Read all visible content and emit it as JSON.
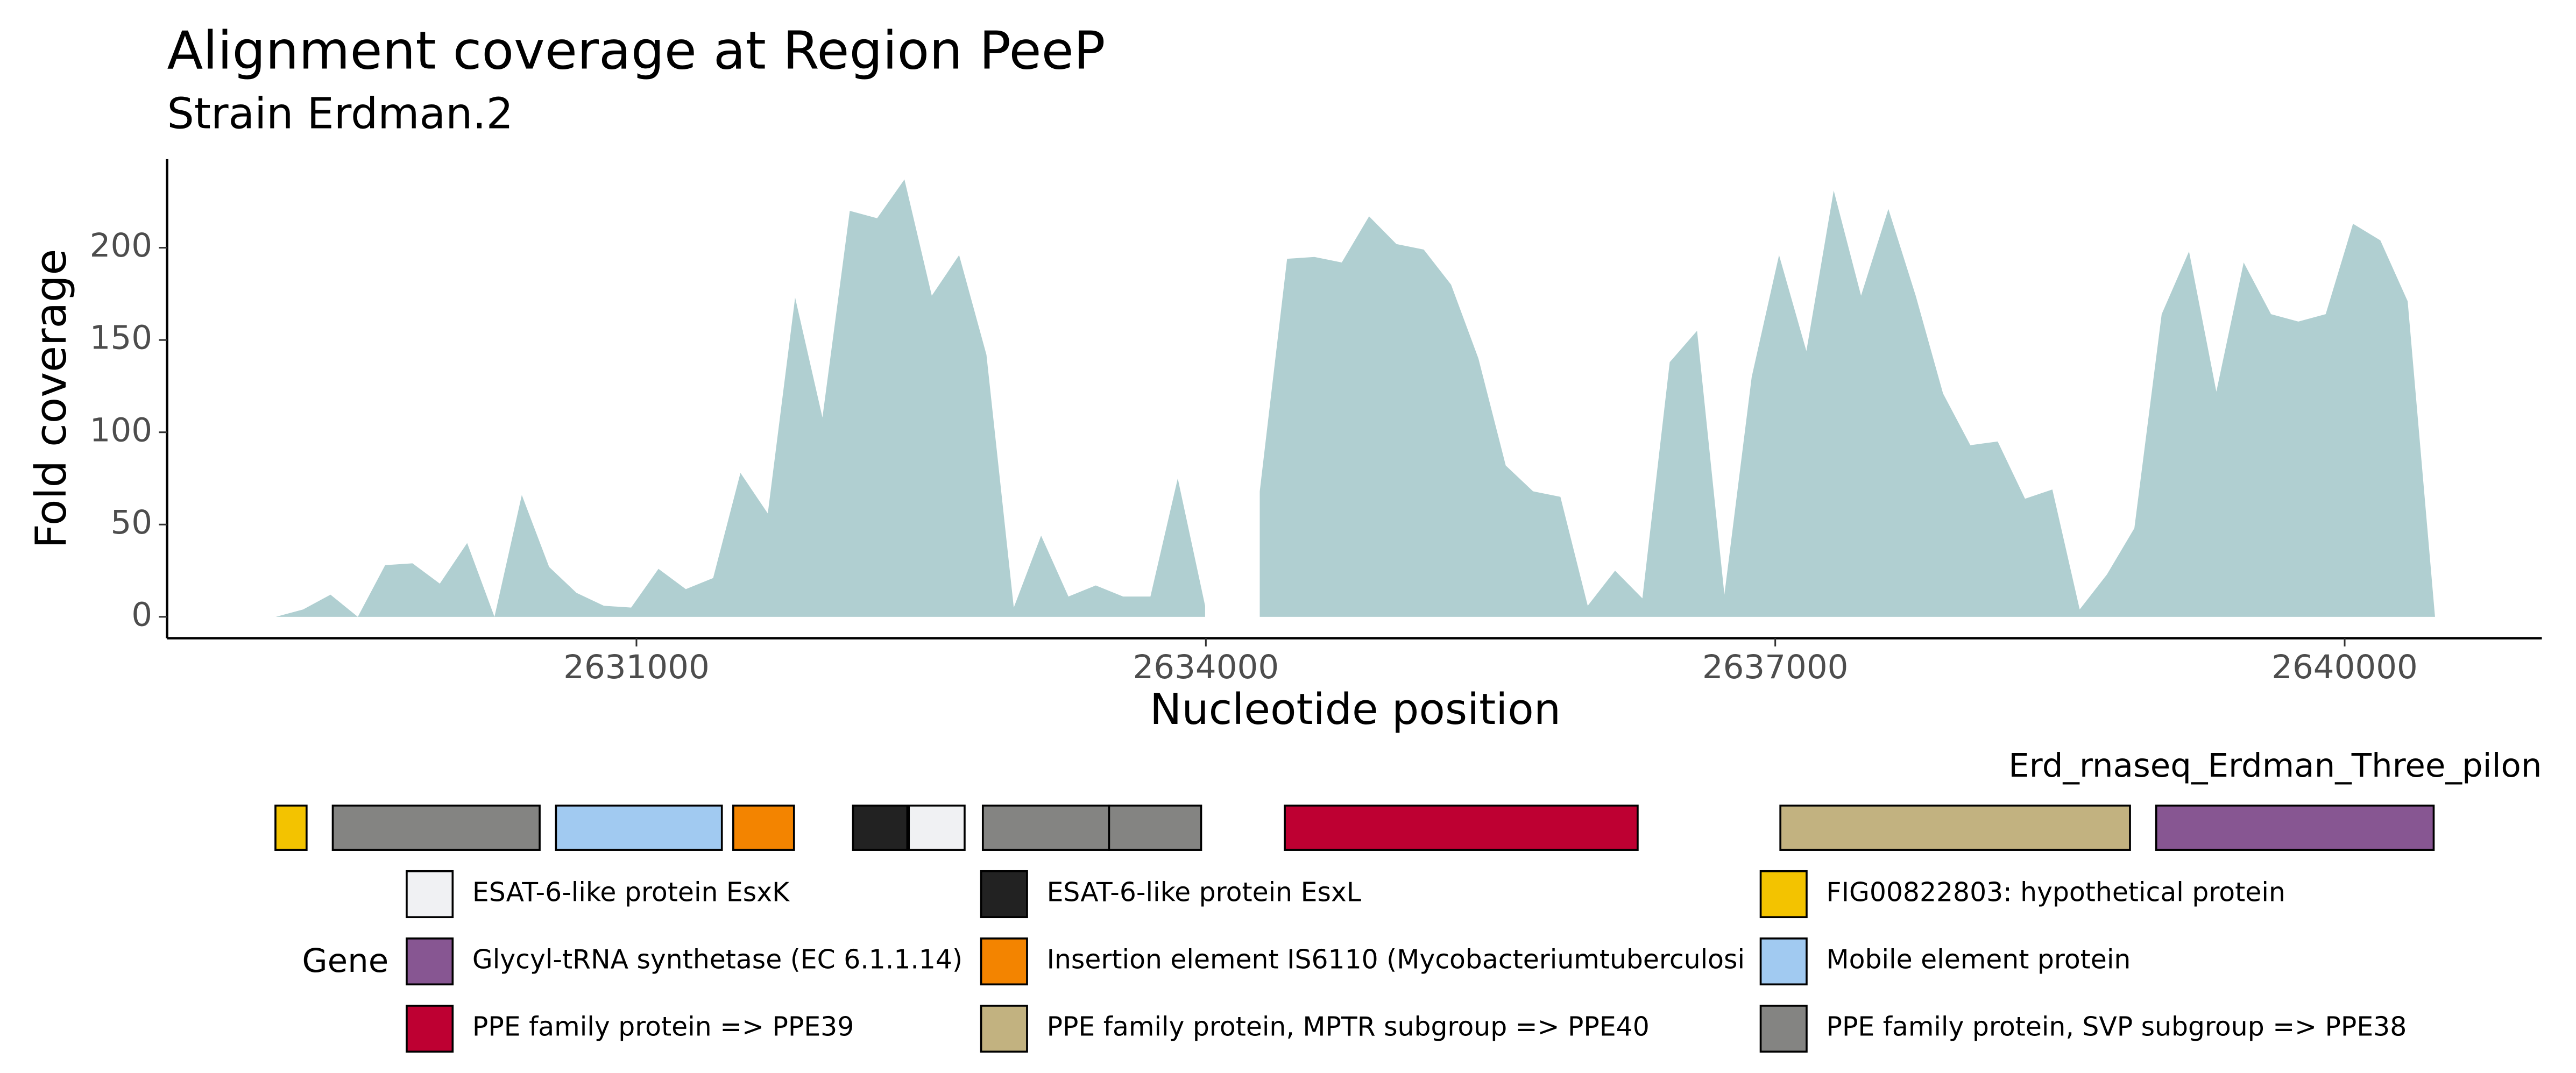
{
  "chart_data": {
    "type": "area",
    "title": "Alignment coverage at Region PeeP",
    "subtitle": "Strain Erdman.2",
    "xlabel": "Nucleotide position",
    "ylabel": "Fold coverage",
    "color": "#b0cfd1",
    "x": [
      2629100,
      2629244,
      2629388,
      2629532,
      2629676,
      2629820,
      2629964,
      2630108,
      2630252,
      2630396,
      2630540,
      2630684,
      2630828,
      2630972,
      2631116,
      2631260,
      2631404,
      2631548,
      2631692,
      2631836,
      2631980,
      2632124,
      2632268,
      2632412,
      2632556,
      2632700,
      2632844,
      2632988,
      2633132,
      2633276,
      2633420,
      2633564,
      2633708,
      2633852,
      2633996,
      2634140,
      2634284,
      2634428,
      2634572,
      2634716,
      2634860,
      2635004,
      2635148,
      2635292,
      2635436,
      2635580,
      2635724,
      2635868,
      2636012,
      2636156,
      2636300,
      2636444,
      2636588,
      2636732,
      2636876,
      2637020,
      2637164,
      2637308,
      2637452,
      2637596,
      2637740,
      2637884,
      2638028,
      2638172,
      2638316,
      2638460,
      2638604,
      2638748,
      2638892,
      2639036,
      2639180,
      2639324,
      2639468,
      2639612,
      2639756,
      2639900,
      2640044,
      2640188,
      2640332,
      2640476
    ],
    "values": [
      0,
      4,
      12,
      0,
      28,
      29,
      18,
      40,
      0,
      66,
      27,
      13,
      6,
      5,
      26,
      15,
      21,
      78,
      56,
      173,
      108,
      220,
      216,
      237,
      174,
      196,
      142,
      5,
      44,
      11,
      17,
      11,
      11,
      75,
      6,
      null,
      68,
      194,
      195,
      192,
      217,
      202,
      199,
      180,
      140,
      82,
      68,
      65,
      6,
      25,
      10,
      138,
      155,
      12,
      130,
      196,
      144,
      231,
      174,
      221,
      174,
      121,
      93,
      95,
      64,
      69,
      4,
      23,
      48,
      164,
      198,
      122,
      192,
      164,
      160,
      164,
      213,
      204,
      171,
      0
    ],
    "xlim": [
      2628527,
      2641039
    ],
    "ylim": [
      -11.6,
      248
    ],
    "xticks": [
      2631000,
      2634000,
      2637000,
      2640000
    ],
    "yticks": [
      0,
      50,
      100,
      150,
      200
    ],
    "track_label": "Erd_rnaseq_Erdman_Three_pilon",
    "legend_title": "Gene",
    "legend": [
      {
        "name": "ESAT-6-like protein EsxK",
        "color": "#f0f1f3"
      },
      {
        "name": "Glycyl-tRNA synthetase (EC 6.1.1.14)",
        "color": "#875692"
      },
      {
        "name": "PPE family protein => PPE39",
        "color": "#be0032"
      },
      {
        "name": "ESAT-6-like protein EsxL",
        "color": "#222222"
      },
      {
        "name": "Insertion element IS6110 (Mycobacteriumtuberculosi",
        "color": "#f38400"
      },
      {
        "name": "PPE family protein, MPTR subgroup => PPE40",
        "color": "#c2b280"
      },
      {
        "name": "FIG00822803: hypothetical protein",
        "color": "#f3c300"
      },
      {
        "name": "Mobile element protein",
        "color": "#a1caf1"
      },
      {
        "name": "PPE family protein, SVP subgroup => PPE38",
        "color": "#848482"
      }
    ],
    "genes": [
      {
        "start": 2629098,
        "end": 2629262,
        "color": "#f3c300"
      },
      {
        "start": 2629400,
        "end": 2630490,
        "color": "#848482"
      },
      {
        "start": 2630576,
        "end": 2631450,
        "color": "#a1caf1"
      },
      {
        "start": 2631510,
        "end": 2631830,
        "color": "#f38400"
      },
      {
        "start": 2632141,
        "end": 2632427,
        "color": "#222222"
      },
      {
        "start": 2632435,
        "end": 2632729,
        "color": "#f0f1f3"
      },
      {
        "start": 2632825,
        "end": 2633490,
        "color": "#848482"
      },
      {
        "start": 2633490,
        "end": 2633975,
        "color": "#848482"
      },
      {
        "start": 2634416,
        "end": 2636275,
        "color": "#be0032"
      },
      {
        "start": 2637027,
        "end": 2638869,
        "color": "#c2b280"
      },
      {
        "start": 2639007,
        "end": 2640469,
        "color": "#875692"
      }
    ]
  }
}
